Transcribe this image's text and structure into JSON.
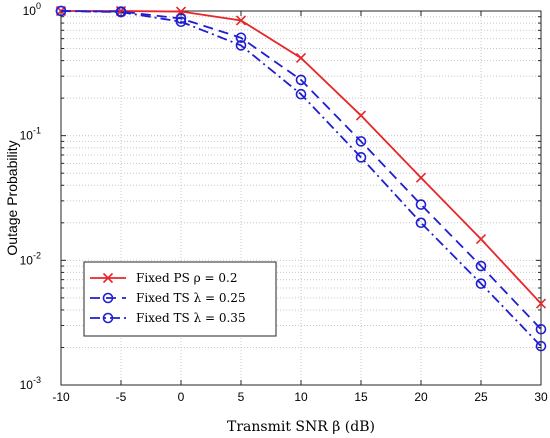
{
  "chart_data": {
    "type": "line",
    "xlabel": "Transmit SNR β (dB)",
    "ylabel": "Outage Probability",
    "xlim": [
      -10,
      30
    ],
    "ylim": [
      0.001,
      1
    ],
    "yscale": "log",
    "grid": true,
    "x_ticks": [
      "-10",
      "-5",
      "0",
      "5",
      "10",
      "15",
      "20",
      "25",
      "30"
    ],
    "y_ticks": [
      {
        "base": "10",
        "exp": "0"
      },
      {
        "base": "10",
        "exp": "-1"
      },
      {
        "base": "10",
        "exp": "-2"
      },
      {
        "base": "10",
        "exp": "-3"
      }
    ],
    "legend_position": "bottom-left",
    "x": [
      -10,
      -5,
      0,
      5,
      10,
      15,
      20,
      25,
      30
    ],
    "series": [
      {
        "name": "Fixed PS ρ = 0.2",
        "values": [
          1.0,
          1.0,
          0.99,
          0.84,
          0.42,
          0.145,
          0.046,
          0.0148,
          0.0045
        ],
        "color": "#e8262a",
        "marker": "x",
        "dash": "solid"
      },
      {
        "name": "Fixed TS λ = 0.25",
        "values": [
          1.0,
          0.99,
          0.87,
          0.61,
          0.28,
          0.09,
          0.028,
          0.009,
          0.0028
        ],
        "color": "#1f1fd1",
        "marker": "o",
        "dash": "dashed"
      },
      {
        "name": "Fixed TS λ = 0.35",
        "values": [
          1.0,
          0.98,
          0.82,
          0.53,
          0.215,
          0.067,
          0.02,
          0.0065,
          0.00205
        ],
        "color": "#1f1fd1",
        "marker": "o",
        "dash": "dashdot"
      }
    ]
  }
}
